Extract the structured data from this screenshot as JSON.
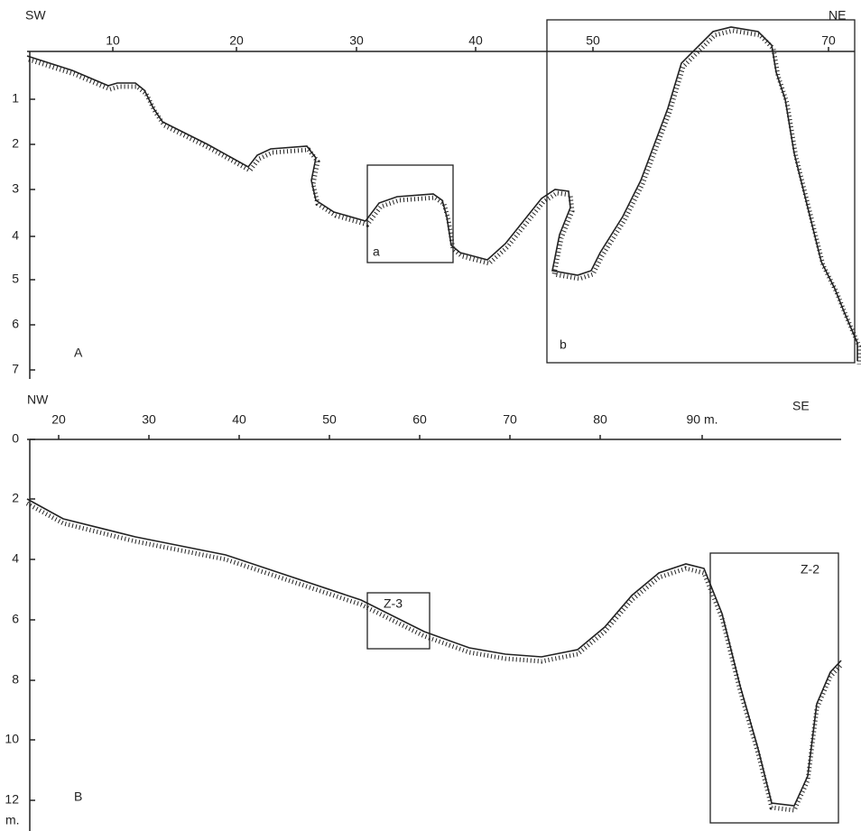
{
  "panel_a": {
    "label": "A",
    "direction_left": "SW",
    "direction_right": "NE",
    "x_ticks": [
      10,
      20,
      30,
      40,
      50,
      70
    ],
    "y_ticks": [
      1,
      2,
      3,
      4,
      5,
      6,
      7
    ],
    "boxes": [
      "a",
      "b"
    ]
  },
  "panel_b": {
    "label": "B",
    "direction_left": "NW",
    "direction_right": "SE",
    "x_ticks": [
      20,
      30,
      40,
      50,
      60,
      70,
      80,
      "90 m."
    ],
    "y_ticks": [
      0,
      2,
      4,
      6,
      8,
      10,
      12
    ],
    "y_unit": "m.",
    "boxes": [
      "Z-3",
      "Z-2"
    ]
  }
}
